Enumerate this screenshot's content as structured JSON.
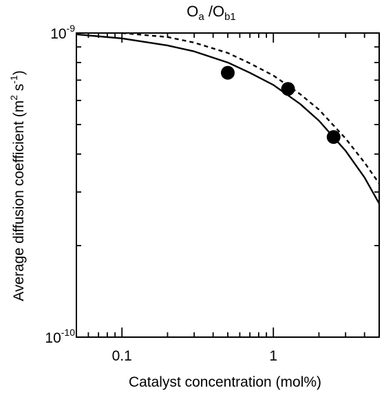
{
  "chart_data": {
    "type": "scatter",
    "title_main": "O",
    "title_sub_a": "a",
    "title_sep": " /O",
    "title_sub_b": "b1",
    "xlabel": "Catalyst concentration (mol%)",
    "ylabel_main": "Average diffusion coefficient (m",
    "ylabel_sup1": "2",
    "ylabel_mid": " s",
    "ylabel_sup2": "-1",
    "ylabel_end": ")",
    "x_scale": "log",
    "y_scale": "log",
    "xlim": [
      0.05,
      5
    ],
    "ylim": [
      1e-10,
      1e-09
    ],
    "x_tick_labels": [
      {
        "value": 0.1,
        "label": "0.1"
      },
      {
        "value": 1,
        "label": "1"
      }
    ],
    "y_tick_labels": [
      {
        "value": 1e-09,
        "base": "10",
        "exp": "-9"
      },
      {
        "value": 1e-10,
        "base": "10",
        "exp": "-10"
      }
    ],
    "grid": false,
    "series": [
      {
        "kind": "points",
        "marker": "filled-circle",
        "x": [
          0.5,
          1.25,
          2.5
        ],
        "y": [
          7.4e-10,
          6.55e-10,
          4.55e-10
        ]
      },
      {
        "kind": "line",
        "style": "solid",
        "x": [
          0.05,
          0.1,
          0.2,
          0.3,
          0.5,
          0.7,
          1.0,
          1.5,
          2.0,
          3.0,
          4.0,
          5.0
        ],
        "y": [
          9.9e-10,
          9.6e-10,
          9.1e-10,
          8.7e-10,
          8e-10,
          7.4e-10,
          6.75e-10,
          5.85e-10,
          5.15e-10,
          4.1e-10,
          3.35e-10,
          2.75e-10
        ]
      },
      {
        "kind": "line",
        "style": "dashed",
        "x": [
          0.1,
          0.2,
          0.3,
          0.5,
          0.7,
          1.0,
          1.5,
          2.0,
          3.0,
          4.0,
          5.0
        ],
        "y": [
          1e-09,
          9.7e-10,
          9.3e-10,
          8.6e-10,
          7.95e-10,
          7.25e-10,
          6.3e-10,
          5.6e-10,
          4.5e-10,
          3.75e-10,
          3.2e-10
        ]
      }
    ]
  }
}
